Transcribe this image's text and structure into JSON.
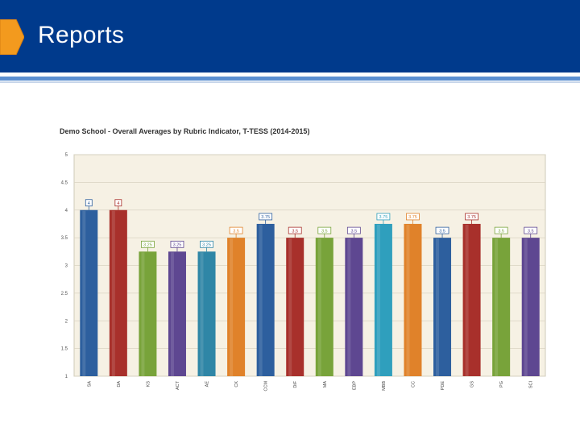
{
  "slide": {
    "title": "Reports"
  },
  "colors": {
    "header": "#003a8c",
    "accent": "#f39a1e",
    "plot_background": "#f6f1e4"
  },
  "chart_data": {
    "type": "bar",
    "title": "Demo School - Overall Averages by Rubric Indicator, T-TESS (2014-2015)",
    "xlabel": "",
    "ylabel": "",
    "ylim": [
      1,
      5
    ],
    "yticks": [
      "1",
      "1.5",
      "2",
      "2.5",
      "3",
      "3.5",
      "4",
      "4.5",
      "5"
    ],
    "grid": true,
    "categories": [
      "SA",
      "DA",
      "KS",
      "ACT",
      "AE",
      "CK",
      "CCM",
      "DiF",
      "MA",
      "EBP",
      "MBB",
      "CC",
      "PDE",
      "GS",
      "PG",
      "SCI"
    ],
    "values": [
      4,
      4,
      3.25,
      3.25,
      3.25,
      3.5,
      3.75,
      3.5,
      3.5,
      3.5,
      3.75,
      3.75,
      3.5,
      3.75,
      3.5,
      3.5
    ],
    "labels": [
      "4",
      "4",
      "3.25",
      "3.25",
      "3.25",
      "3.5",
      "3.75",
      "3.5",
      "3.5",
      "3.5",
      "3.75",
      "3.75",
      "3.5",
      "3.75",
      "3.5",
      "3.5"
    ],
    "bar_colors": [
      "#2d5f9e",
      "#a8302b",
      "#78a33a",
      "#5e4791",
      "#2f86a6",
      "#e0822a",
      "#2d5f9e",
      "#a8302b",
      "#78a33a",
      "#5e4791",
      "#2f9fbd",
      "#e0822a",
      "#2d5f9e",
      "#a8302b",
      "#78a33a",
      "#5e4791"
    ]
  }
}
